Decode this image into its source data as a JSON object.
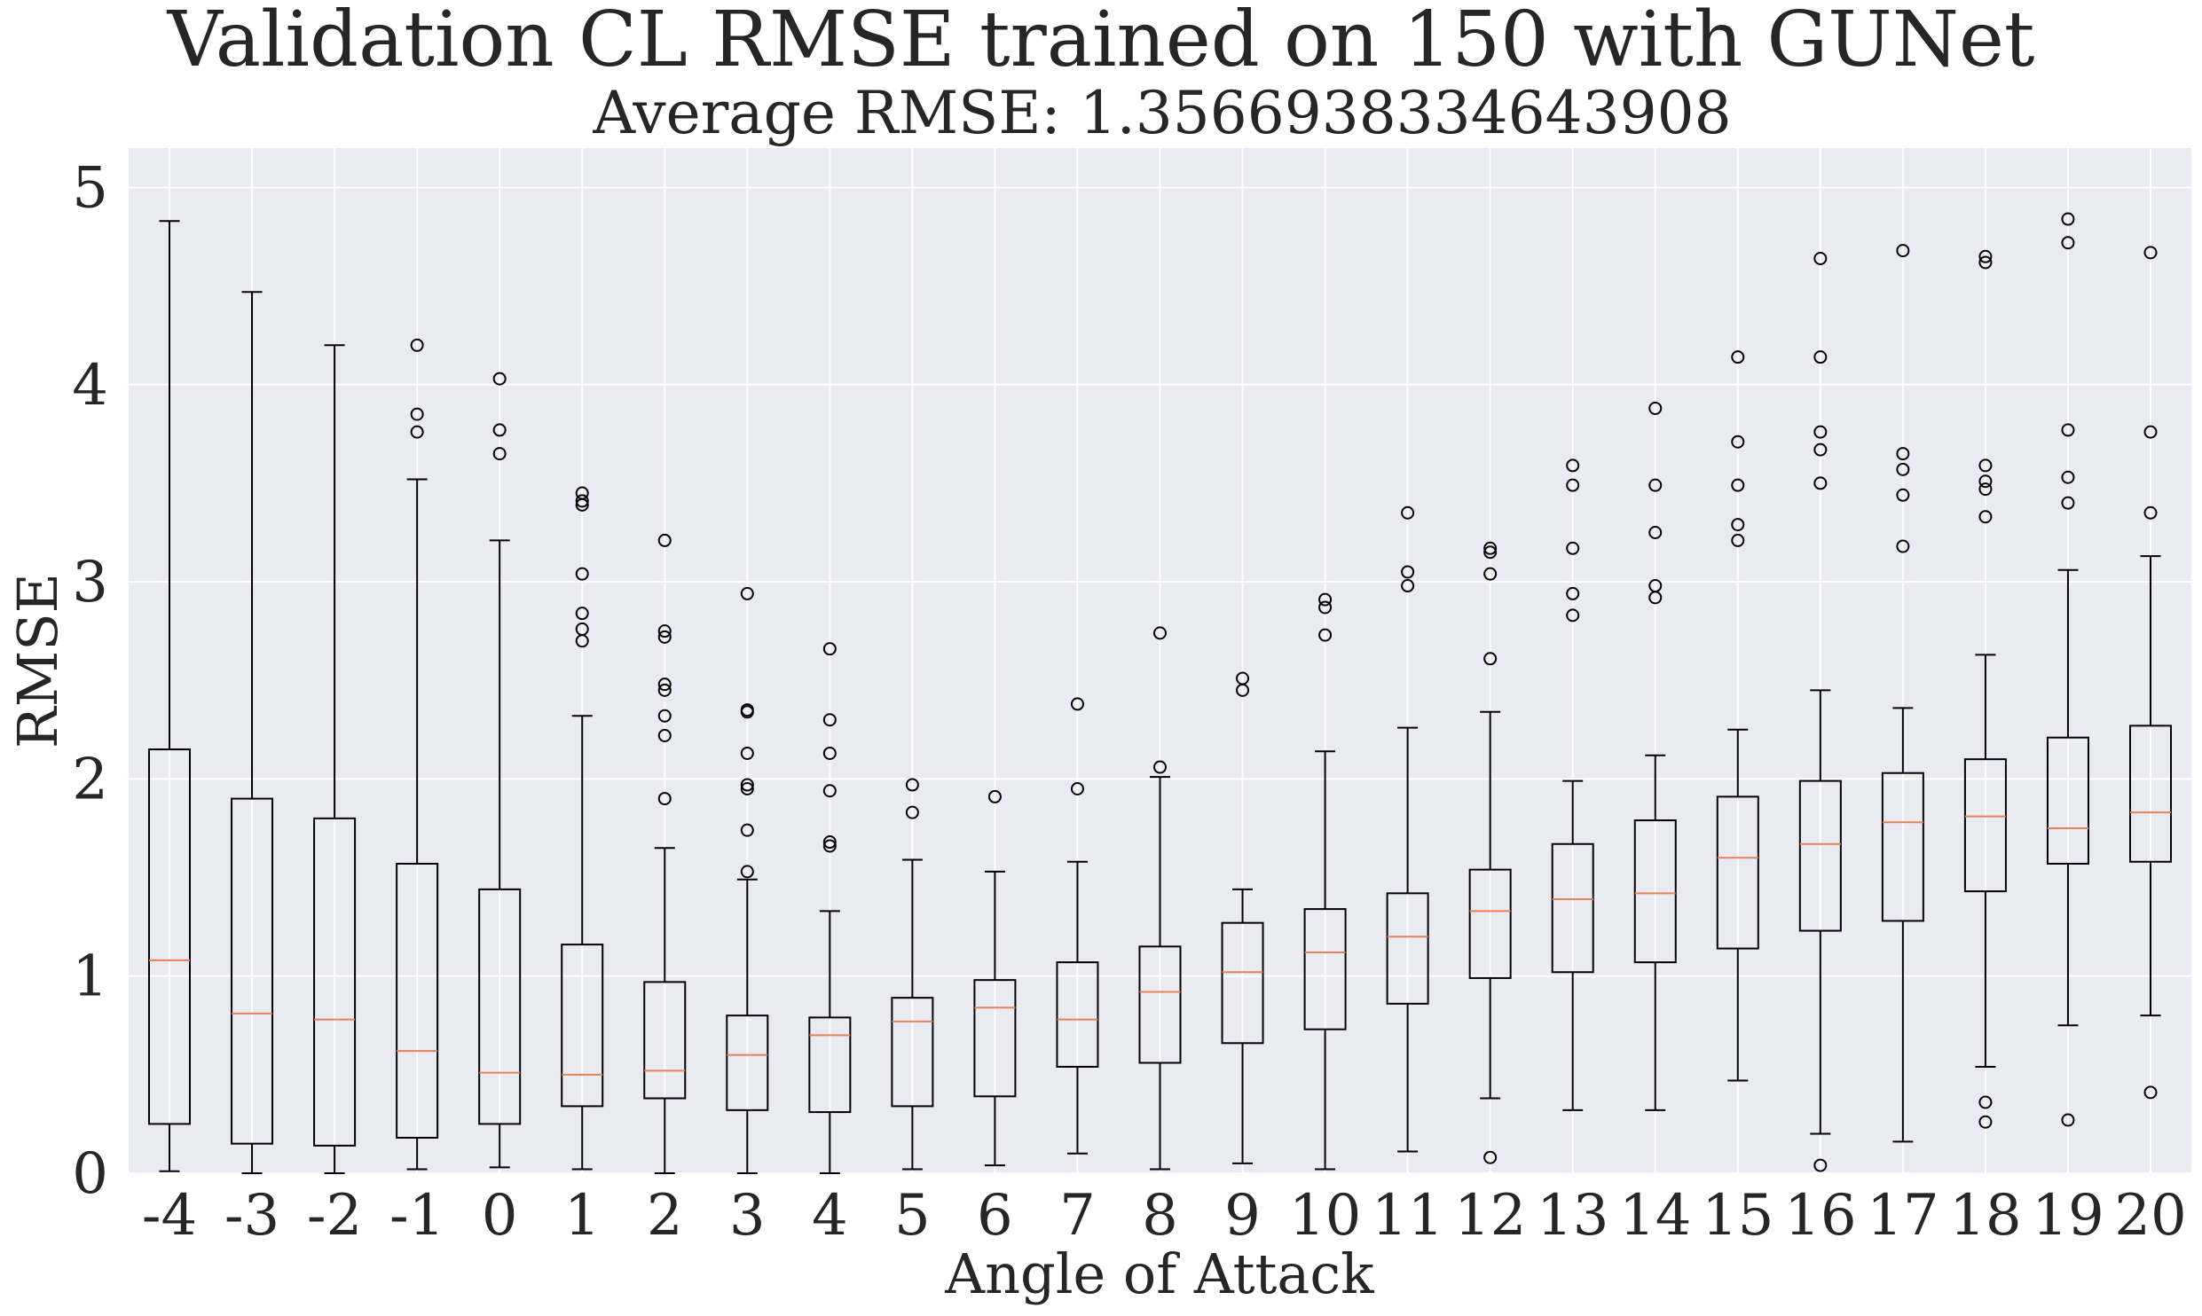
{
  "chart_data": {
    "type": "box",
    "title": "Validation CL RMSE trained on 150 with GUNet",
    "subtitle": "Average RMSE:  1.3566938334643908",
    "xlabel": "Angle of Attack",
    "ylabel": "RMSE",
    "ylim": [
      0,
      5.2
    ],
    "yticks": [
      0,
      1,
      2,
      3,
      4,
      5
    ],
    "grid": true,
    "colors": {
      "background": "#eaeaf2",
      "grid": "#ffffff",
      "box": "#000000",
      "median": "#e5825a"
    },
    "categories": [
      "-4",
      "-3",
      "-2",
      "-1",
      "0",
      "1",
      "2",
      "3",
      "4",
      "5",
      "6",
      "7",
      "8",
      "9",
      "10",
      "11",
      "12",
      "13",
      "14",
      "15",
      "16",
      "17",
      "18",
      "19",
      "20"
    ],
    "boxes": [
      {
        "x": "-4",
        "whislo": 0.01,
        "q1": 0.25,
        "med": 1.08,
        "q3": 2.15,
        "whishi": 4.83,
        "fliers": []
      },
      {
        "x": "-3",
        "whislo": 0.0,
        "q1": 0.15,
        "med": 0.81,
        "q3": 1.9,
        "whishi": 4.47,
        "fliers": []
      },
      {
        "x": "-2",
        "whislo": 0.0,
        "q1": 0.14,
        "med": 0.78,
        "q3": 1.8,
        "whishi": 4.2,
        "fliers": []
      },
      {
        "x": "-1",
        "whislo": 0.02,
        "q1": 0.18,
        "med": 0.62,
        "q3": 1.57,
        "whishi": 3.52,
        "fliers": [
          3.76,
          3.85,
          4.2
        ]
      },
      {
        "x": "0",
        "whislo": 0.03,
        "q1": 0.25,
        "med": 0.51,
        "q3": 1.44,
        "whishi": 3.21,
        "fliers": [
          3.65,
          3.77,
          4.03
        ]
      },
      {
        "x": "1",
        "whislo": 0.02,
        "q1": 0.34,
        "med": 0.5,
        "q3": 1.16,
        "whishi": 2.32,
        "fliers": [
          2.7,
          2.76,
          2.84,
          3.04,
          3.39,
          3.41,
          3.45
        ]
      },
      {
        "x": "2",
        "whislo": 0.0,
        "q1": 0.38,
        "med": 0.52,
        "q3": 0.97,
        "whishi": 1.65,
        "fliers": [
          1.9,
          2.22,
          2.32,
          2.45,
          2.48,
          2.72,
          2.75,
          3.21
        ]
      },
      {
        "x": "3",
        "whislo": 0.0,
        "q1": 0.32,
        "med": 0.6,
        "q3": 0.8,
        "whishi": 1.49,
        "fliers": [
          1.53,
          1.74,
          1.95,
          1.97,
          2.13,
          2.34,
          2.35,
          2.94
        ]
      },
      {
        "x": "4",
        "whislo": 0.0,
        "q1": 0.31,
        "med": 0.7,
        "q3": 0.79,
        "whishi": 1.33,
        "fliers": [
          1.66,
          1.68,
          1.94,
          2.13,
          2.3,
          2.66
        ]
      },
      {
        "x": "5",
        "whislo": 0.02,
        "q1": 0.34,
        "med": 0.77,
        "q3": 0.89,
        "whishi": 1.59,
        "fliers": [
          1.83,
          1.97
        ]
      },
      {
        "x": "6",
        "whislo": 0.04,
        "q1": 0.39,
        "med": 0.84,
        "q3": 0.98,
        "whishi": 1.53,
        "fliers": [
          1.91
        ]
      },
      {
        "x": "7",
        "whislo": 0.1,
        "q1": 0.54,
        "med": 0.78,
        "q3": 1.07,
        "whishi": 1.58,
        "fliers": [
          1.95,
          2.38
        ]
      },
      {
        "x": "8",
        "whislo": 0.02,
        "q1": 0.56,
        "med": 0.92,
        "q3": 1.15,
        "whishi": 2.01,
        "fliers": [
          2.06,
          2.74
        ]
      },
      {
        "x": "9",
        "whislo": 0.05,
        "q1": 0.66,
        "med": 1.02,
        "q3": 1.27,
        "whishi": 1.44,
        "fliers": [
          2.45,
          2.51
        ]
      },
      {
        "x": "10",
        "whislo": 0.02,
        "q1": 0.73,
        "med": 1.12,
        "q3": 1.34,
        "whishi": 2.14,
        "fliers": [
          2.73,
          2.87,
          2.91
        ]
      },
      {
        "x": "11",
        "whislo": 0.11,
        "q1": 0.86,
        "med": 1.2,
        "q3": 1.42,
        "whishi": 2.26,
        "fliers": [
          2.98,
          3.05,
          3.35
        ]
      },
      {
        "x": "12",
        "whislo": 0.38,
        "q1": 0.99,
        "med": 1.33,
        "q3": 1.54,
        "whishi": 2.34,
        "fliers": [
          0.08,
          2.61,
          3.04,
          3.15,
          3.17
        ]
      },
      {
        "x": "13",
        "whislo": 0.32,
        "q1": 1.02,
        "med": 1.39,
        "q3": 1.67,
        "whishi": 1.99,
        "fliers": [
          2.83,
          2.94,
          3.17,
          3.49,
          3.59
        ]
      },
      {
        "x": "14",
        "whislo": 0.32,
        "q1": 1.07,
        "med": 1.42,
        "q3": 1.79,
        "whishi": 2.12,
        "fliers": [
          2.92,
          2.98,
          3.25,
          3.49,
          3.88
        ]
      },
      {
        "x": "15",
        "whislo": 0.47,
        "q1": 1.14,
        "med": 1.6,
        "q3": 1.91,
        "whishi": 2.25,
        "fliers": [
          3.21,
          3.29,
          3.49,
          3.71,
          4.14
        ]
      },
      {
        "x": "16",
        "whislo": 0.2,
        "q1": 1.23,
        "med": 1.67,
        "q3": 1.99,
        "whishi": 2.45,
        "fliers": [
          0.04,
          3.5,
          3.67,
          3.76,
          4.14,
          4.64
        ]
      },
      {
        "x": "17",
        "whislo": 0.16,
        "q1": 1.28,
        "med": 1.78,
        "q3": 2.03,
        "whishi": 2.36,
        "fliers": [
          3.18,
          3.44,
          3.57,
          3.65,
          4.68
        ]
      },
      {
        "x": "18",
        "whislo": 0.54,
        "q1": 1.43,
        "med": 1.81,
        "q3": 2.1,
        "whishi": 2.63,
        "fliers": [
          0.26,
          0.36,
          3.33,
          3.47,
          3.51,
          3.59,
          4.62,
          4.65
        ]
      },
      {
        "x": "19",
        "whislo": 0.75,
        "q1": 1.57,
        "med": 1.75,
        "q3": 2.21,
        "whishi": 3.06,
        "fliers": [
          0.27,
          3.4,
          3.53,
          3.77,
          4.72,
          4.84
        ]
      },
      {
        "x": "20",
        "whislo": 0.8,
        "q1": 1.58,
        "med": 1.83,
        "q3": 2.27,
        "whishi": 3.13,
        "fliers": [
          0.41,
          3.35,
          3.76,
          4.67
        ]
      }
    ]
  }
}
